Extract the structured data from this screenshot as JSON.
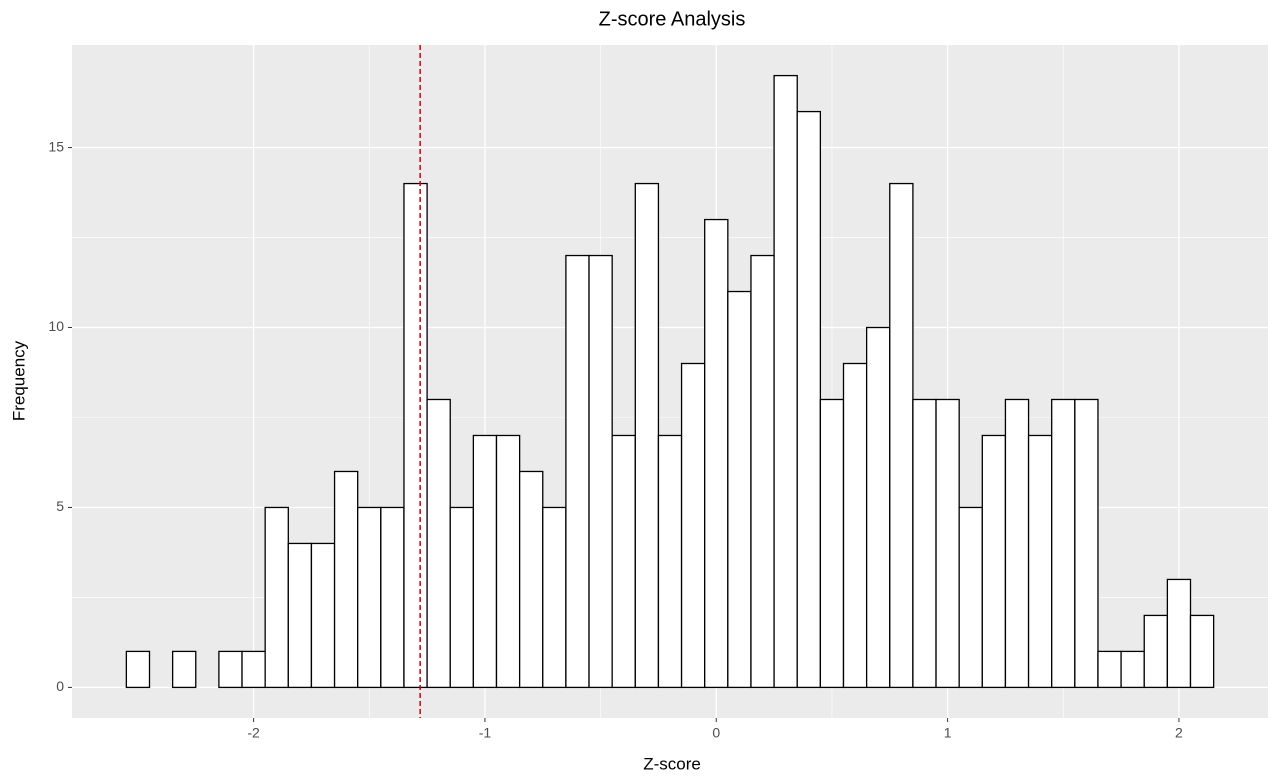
{
  "chart_data": {
    "type": "histogram",
    "title": "Z-score Analysis",
    "x_label": "Z-score",
    "y_label": "Frequency",
    "bins": [
      -2.55,
      -2.45,
      -2.35,
      -2.25,
      -2.15,
      -2.05,
      -1.95,
      -1.85,
      -1.75,
      -1.65,
      -1.55,
      -1.45,
      -1.35,
      -1.25,
      -1.15,
      -1.05,
      -0.95,
      -0.85,
      -0.75,
      -0.65,
      -0.55,
      -0.45,
      -0.35,
      -0.25,
      -0.15,
      -0.05,
      0.05,
      0.15,
      0.25,
      0.35,
      0.45,
      0.55,
      0.65,
      0.75,
      0.85,
      0.95,
      1.05,
      1.15,
      1.25,
      1.35,
      1.45,
      1.55,
      1.65,
      1.75,
      1.85,
      1.95,
      2.05,
      2.15
    ],
    "values": [
      1,
      0,
      1,
      0,
      1,
      1,
      5,
      4,
      4,
      6,
      5,
      5,
      14,
      8,
      5,
      7,
      7,
      6,
      5,
      12,
      12,
      7,
      14,
      7,
      9,
      13,
      11,
      12,
      17,
      16,
      8,
      9,
      10,
      14,
      8,
      8,
      5,
      7,
      8,
      7,
      8,
      8,
      1,
      1,
      2,
      3,
      2
    ],
    "color": "#ffffff",
    "edge_color": "#000000",
    "vline": -1.28,
    "vline_color": "#cc0000",
    "xlim": [
      -2.785,
      2.385
    ],
    "xticks": [
      -2,
      -1,
      0,
      1,
      2
    ],
    "ylim": [
      -0.85,
      17.85
    ],
    "yticks": [
      0,
      5,
      10,
      15
    ],
    "grid": true
  }
}
